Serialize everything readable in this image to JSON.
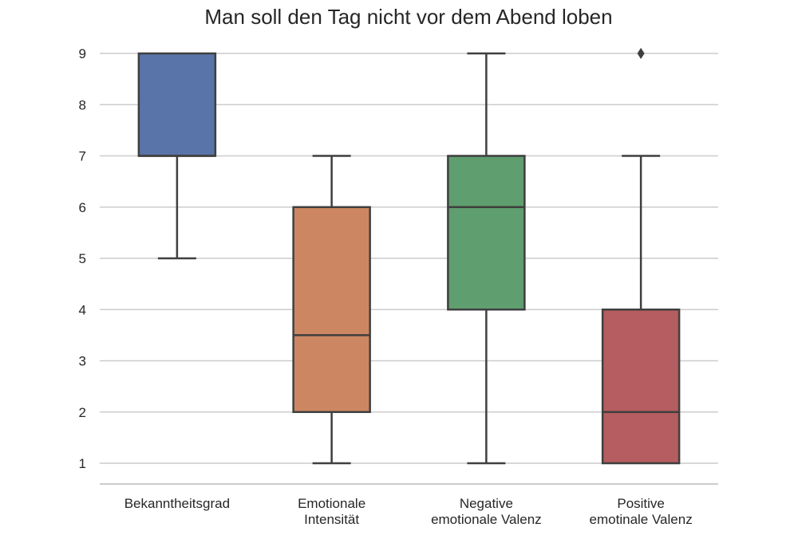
{
  "chart_data": {
    "type": "boxplot",
    "title": "Man soll den Tag nicht vor dem Abend loben",
    "xlabel": "",
    "ylabel": "",
    "ylim": [
      0.6,
      9.4
    ],
    "yticks": [
      1,
      2,
      3,
      4,
      5,
      6,
      7,
      8,
      9
    ],
    "grid": "horizontal",
    "categories": [
      [
        "Bekanntheitsgrad"
      ],
      [
        "Emotionale",
        "Intensität"
      ],
      [
        "Negative",
        "emotionale Valenz"
      ],
      [
        "Positive",
        "emotinale Valenz"
      ]
    ],
    "boxes": [
      {
        "whisker_low": 5,
        "q1": 7,
        "median": 7,
        "q3": 9,
        "whisker_high": 9,
        "outliers": [],
        "color": "#5874a8"
      },
      {
        "whisker_low": 1,
        "q1": 2,
        "median": 3.5,
        "q3": 6,
        "whisker_high": 7,
        "outliers": [],
        "color": "#cc8762"
      },
      {
        "whisker_low": 1,
        "q1": 4,
        "median": 6,
        "q3": 7,
        "whisker_high": 9,
        "outliers": [],
        "color": "#5f9e6e"
      },
      {
        "whisker_low": 1,
        "q1": 1,
        "median": 2,
        "q3": 4,
        "whisker_high": 7,
        "outliers": [
          9
        ],
        "color": "#b55d60"
      }
    ],
    "colors": {
      "grid": "#cccccc",
      "axis": "#cccccc",
      "line": "#3f3f3f",
      "text": "#262626"
    }
  }
}
